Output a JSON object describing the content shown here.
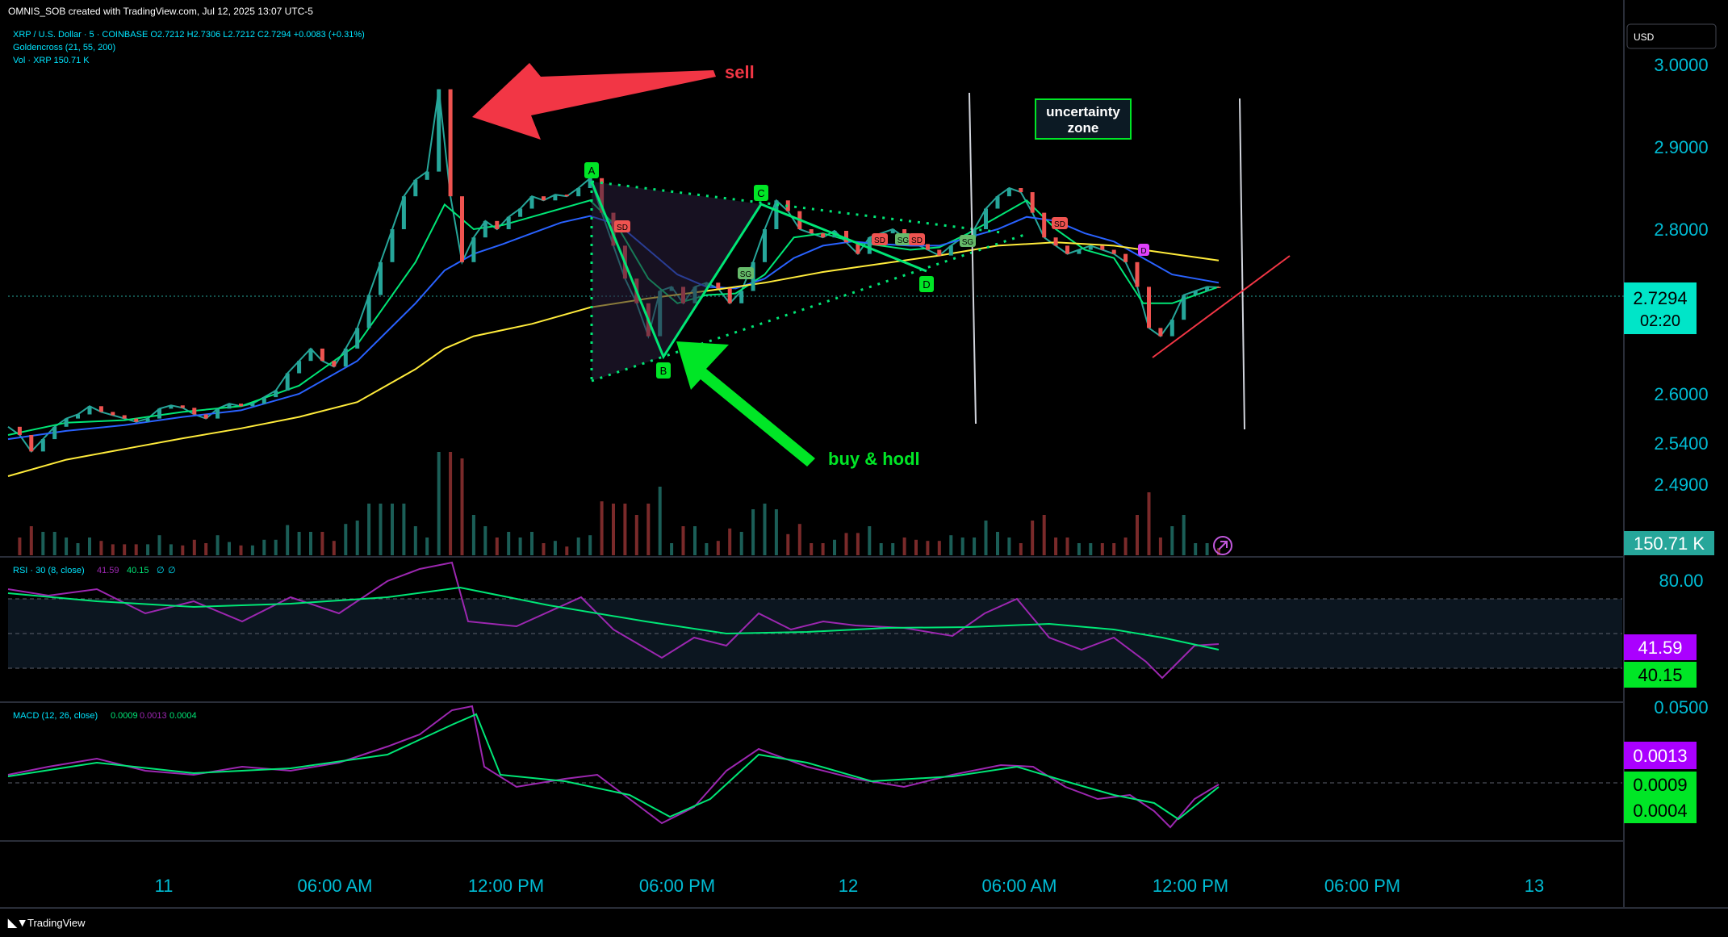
{
  "header": {
    "created_by": "OMNIS_SOB created with TradingView.com, Jul 12, 2025 13:07 UTC-5"
  },
  "legend": {
    "symbol_line": "XRP / U.S. Dollar · 5 · COINBASE  O2.7212  H2.7306  L2.7212  C2.7294  +0.0083 (+0.31%)",
    "goldencross": "Goldencross (21, 55, 200)",
    "volume": "Vol · XRP  150.71 K",
    "rsi": "RSI · 30 (8, close)",
    "rsi_v1": "41.59",
    "rsi_v2": "40.15",
    "rsi_v3": "∅",
    "rsi_v4": "∅",
    "macd": "MACD (12, 26, close)",
    "macd_v1": "0.0009",
    "macd_v2": "0.0013",
    "macd_v3": "0.0004"
  },
  "currency_button": "USD",
  "annotations": {
    "sell": "sell",
    "buy": "buy & hodl",
    "uncertainty_1": "uncertainty",
    "uncertainty_2": "zone",
    "pattern_labels": [
      "A",
      "B",
      "C",
      "D"
    ],
    "signal_sd": "SD",
    "signal_sg": "SG"
  },
  "badges": {
    "price": "2.7294",
    "countdown": "02:20",
    "volume": "150.71 K",
    "rsi_a": "41.59",
    "rsi_b": "40.15",
    "macd_a": "0.0013",
    "macd_b": "0.0009",
    "macd_c": "0.0004"
  },
  "footer": {
    "brand": "TradingView"
  },
  "colors": {
    "background": "#000000",
    "up": "#26a69a",
    "down": "#ef5350",
    "ema21": "#00e676",
    "ema55": "#2962ff",
    "ema200": "#ffeb3b",
    "rsi": "#9c27b0",
    "rsi_ma": "#00e676",
    "macd": "#9c27b0",
    "signal": "#00e676",
    "axis_text": "#00bcd4",
    "sell_arrow": "#f23645",
    "buy_arrow": "#00e626",
    "triangle_line": "#00e676",
    "price_badge": "#00e5c8",
    "macd_badge": "#aa00ff"
  },
  "chart_data": {
    "type": "line",
    "title": "XRP / U.S. Dollar · 5 · COINBASE",
    "y_ticks": [
      "3.0000",
      "2.9000",
      "2.8000",
      "2.7294",
      "2.6000",
      "2.5400",
      "2.4900"
    ],
    "x_ticks": [
      "11",
      "06:00 AM",
      "12:00 PM",
      "06:00 PM",
      "12",
      "06:00 AM",
      "12:00 PM",
      "06:00 PM",
      "13"
    ],
    "ylim": [
      2.47,
      3.02
    ],
    "series": [
      {
        "name": "XRP",
        "x": [
          0,
          4,
          8,
          12,
          16,
          20,
          24,
          28,
          32,
          36,
          40,
          44,
          48,
          52,
          56,
          60,
          64,
          68,
          72,
          76,
          80,
          84,
          88,
          92,
          96,
          100,
          104,
          108,
          112,
          116,
          120,
          124,
          128,
          132,
          136,
          140,
          144,
          148,
          152,
          156,
          160,
          164,
          168,
          172,
          176,
          180,
          184,
          188,
          192,
          196,
          200,
          204,
          208,
          212,
          216,
          220,
          224,
          228,
          232,
          236,
          240,
          244,
          248,
          252,
          256,
          260,
          264,
          268,
          272,
          276,
          280,
          284,
          288,
          292,
          296,
          300,
          304,
          308,
          312,
          316,
          320,
          324,
          328,
          332,
          336,
          340,
          344,
          348,
          352,
          356,
          360,
          364,
          368,
          372,
          376,
          380,
          384,
          388,
          392,
          396,
          400,
          404,
          408,
          412,
          416
        ],
        "values": [
          2.56,
          2.55,
          2.53,
          2.545,
          2.56,
          2.57,
          2.575,
          2.585,
          2.578,
          2.574,
          2.57,
          2.566,
          2.57,
          2.582,
          2.586,
          2.583,
          2.575,
          2.57,
          2.582,
          2.588,
          2.585,
          2.588,
          2.596,
          2.604,
          2.625,
          2.64,
          2.655,
          2.64,
          2.633,
          2.655,
          2.68,
          2.72,
          2.76,
          2.8,
          2.84,
          2.86,
          2.87,
          2.97,
          2.84,
          2.76,
          2.79,
          2.81,
          2.8,
          2.815,
          2.825,
          2.84,
          2.835,
          2.842,
          2.84,
          2.85,
          2.862,
          2.82,
          2.78,
          2.74,
          2.71,
          2.67,
          2.725,
          2.73,
          2.71,
          2.73,
          2.735,
          2.728,
          2.71,
          2.725,
          2.76,
          2.8,
          2.835,
          2.822,
          2.8,
          2.795,
          2.79,
          2.798,
          2.784,
          2.77,
          2.79,
          2.795,
          2.8,
          2.79,
          2.782,
          2.775,
          2.768,
          2.78,
          2.79,
          2.8,
          2.825,
          2.84,
          2.85,
          2.845,
          2.82,
          2.79,
          2.78,
          2.77,
          2.775,
          2.78,
          2.775,
          2.77,
          2.76,
          2.73,
          2.68,
          2.67,
          2.69,
          2.72,
          2.725,
          2.73,
          2.7294
        ]
      },
      {
        "name": "Goldencross 21",
        "x": [
          0,
          20,
          40,
          60,
          80,
          100,
          120,
          140,
          150,
          160,
          170,
          180,
          190,
          200,
          210,
          220,
          230,
          240,
          250,
          260,
          270,
          280,
          290,
          300,
          310,
          320,
          330,
          340,
          350,
          360,
          370,
          380,
          390,
          400,
          416
        ],
        "values": [
          2.55,
          2.565,
          2.568,
          2.578,
          2.585,
          2.61,
          2.66,
          2.76,
          2.83,
          2.8,
          2.805,
          2.815,
          2.825,
          2.835,
          2.8,
          2.74,
          2.71,
          2.72,
          2.722,
          2.745,
          2.79,
          2.795,
          2.785,
          2.78,
          2.775,
          2.778,
          2.795,
          2.815,
          2.835,
          2.8,
          2.775,
          2.765,
          2.71,
          2.71,
          2.73
        ]
      },
      {
        "name": "Goldencross 55",
        "x": [
          0,
          20,
          40,
          60,
          80,
          100,
          120,
          140,
          150,
          160,
          170,
          180,
          190,
          200,
          210,
          220,
          230,
          240,
          250,
          260,
          270,
          280,
          290,
          300,
          310,
          320,
          330,
          340,
          350,
          360,
          370,
          380,
          390,
          400,
          416
        ],
        "values": [
          2.545,
          2.555,
          2.562,
          2.572,
          2.58,
          2.6,
          2.64,
          2.71,
          2.75,
          2.77,
          2.782,
          2.795,
          2.808,
          2.816,
          2.805,
          2.775,
          2.745,
          2.73,
          2.728,
          2.74,
          2.765,
          2.78,
          2.785,
          2.782,
          2.78,
          2.78,
          2.79,
          2.8,
          2.815,
          2.81,
          2.795,
          2.785,
          2.765,
          2.745,
          2.735
        ]
      },
      {
        "name": "Goldencross 200",
        "x": [
          0,
          20,
          40,
          60,
          80,
          100,
          120,
          140,
          150,
          160,
          180,
          200,
          220,
          240,
          260,
          280,
          300,
          320,
          340,
          360,
          380,
          400,
          416
        ],
        "values": [
          2.5,
          2.52,
          2.533,
          2.546,
          2.558,
          2.572,
          2.59,
          2.63,
          2.655,
          2.67,
          2.685,
          2.705,
          2.716,
          2.725,
          2.735,
          2.748,
          2.758,
          2.768,
          2.78,
          2.784,
          2.78,
          2.77,
          2.762
        ]
      }
    ]
  }
}
